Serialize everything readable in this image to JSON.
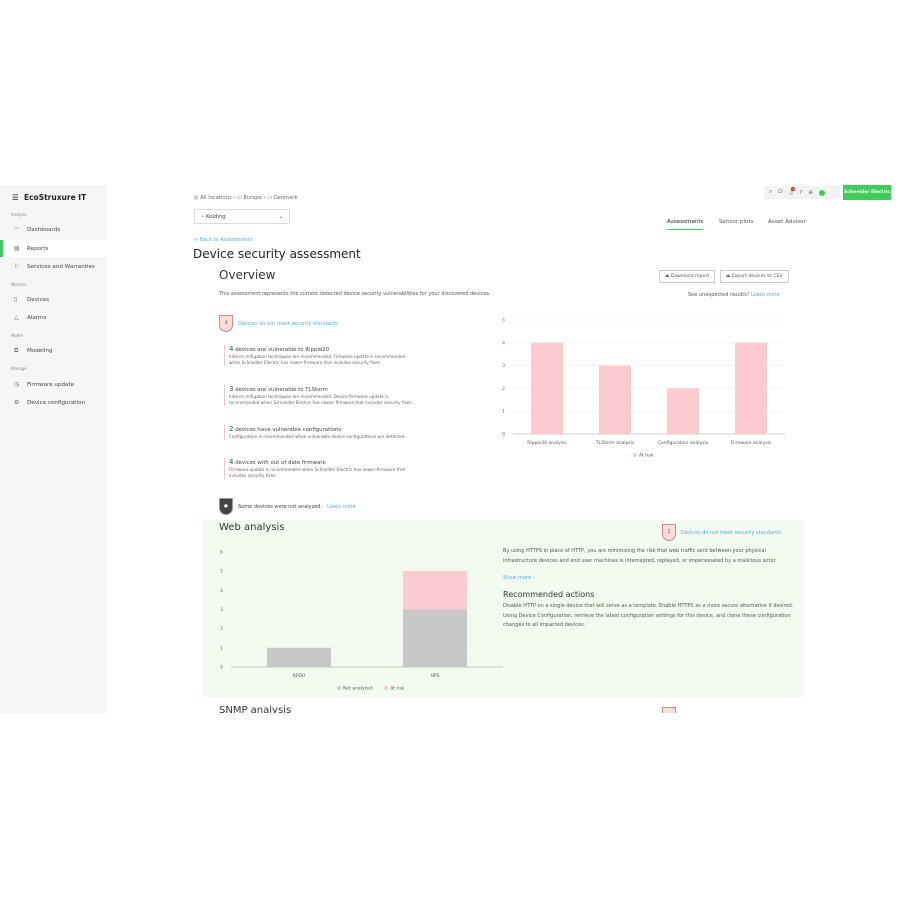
{
  "app": {
    "logo": "EcoStruxure IT",
    "brand": "Schneider Electric",
    "notification_count": "9"
  },
  "sidebar": {
    "sections": [
      {
        "label": "Analyze",
        "items": [
          {
            "label": "Dashboards",
            "icon": "dashboard-icon"
          },
          {
            "label": "Reports",
            "icon": "report-icon",
            "active": true
          },
          {
            "label": "Services and Warranties",
            "icon": "services-icon"
          }
        ]
      },
      {
        "label": "Monitor",
        "items": [
          {
            "label": "Devices",
            "icon": "device-icon"
          },
          {
            "label": "Alarms",
            "icon": "alarm-icon"
          }
        ]
      },
      {
        "label": "Model",
        "items": [
          {
            "label": "Modeling",
            "icon": "modeling-icon"
          }
        ]
      },
      {
        "label": "Manage",
        "items": [
          {
            "label": "Firmware update",
            "icon": "firmware-icon"
          },
          {
            "label": "Device configuration",
            "icon": "config-icon"
          }
        ]
      }
    ]
  },
  "breadcrumb": [
    "All locations",
    "Europe",
    "Denmark"
  ],
  "location_select": "Kolding",
  "tabs": [
    "Assessments",
    "Sensor plots",
    "Asset Advisor"
  ],
  "back_link": "< Back to Assessments",
  "page_title": "Device security assessment",
  "overview": {
    "title": "Overview",
    "download": "Download report",
    "export": "Export devices to CSV",
    "unexpected": "See unexpected results?",
    "learn_more": "Learn more",
    "intro": "This assessment represents the current detected device security vulnerabilities for your discovered devices.",
    "badge_count": "4",
    "badge_label": "Devices do not meet security standards",
    "items": [
      {
        "count": "4",
        "title": "devices are vulnerable to Ripple20",
        "desc": "Interim mitigation techniques are recommended. Firmware update is recommended when Schneider Electric has newer firmware that includes security fixes."
      },
      {
        "count": "3",
        "title": "devices are vulnerable to TLStorm",
        "desc": "Interim mitigation techniques are recommended. Device firmware update is recommended when Schneider Electric has newer firmware that includes security fixes."
      },
      {
        "count": "2",
        "title": "devices have vulnerable configurations",
        "desc": "Configuration is recommended when vulnerable device configurations are detected."
      },
      {
        "count": "4",
        "title": "devices with out of date firmware",
        "desc": "Firmware update is recommended when Schneider Electric has newer firmware that includes security fixes."
      }
    ],
    "not_analyzed": "Some devices were not analyzed.",
    "not_analyzed_link": "Learn more"
  },
  "web": {
    "title": "Web analysis",
    "badge_count": "2",
    "badge_label": "Devices do not meet security standards",
    "desc": "By using HTTPS in place of HTTP, you are minimizing the risk that web traffic sent between your physical infrastructure devices and end user machines is intercepted, replayed, or impersonated by a malicious actor.",
    "show_more": "Show more ›",
    "actions_title": "Recommended actions",
    "actions": "Disable HTTP on a single device that will serve as a template. Enable HTTPS as a more secure alternative if desired. Using Device Configuration, retrieve the latest configuration settings for this device, and clone these configuration changes to all impacted devices."
  },
  "snmp": {
    "title": "SNMP analysis"
  },
  "chart_data": [
    {
      "type": "bar",
      "categories": [
        "Ripple20 analysis",
        "TLStorm analysis",
        "Configuration analysis",
        "Firmware analysis"
      ],
      "series": [
        {
          "name": "At risk",
          "values": [
            4,
            3,
            2,
            4
          ],
          "color": "#fccbcf"
        }
      ],
      "ylim": [
        0,
        5
      ],
      "yticks": [
        0,
        1,
        2,
        3,
        4,
        5
      ],
      "grid": true,
      "legend": "bottom"
    },
    {
      "type": "bar",
      "stacked": true,
      "categories": [
        "RPDU",
        "UPS"
      ],
      "series": [
        {
          "name": "Not analyzed",
          "values": [
            1,
            3
          ],
          "color": "#c8c8c8"
        },
        {
          "name": "At risk",
          "values": [
            0,
            2
          ],
          "color": "#fccbcf"
        }
      ],
      "ylim": [
        0,
        6
      ],
      "yticks": [
        0,
        1,
        2,
        3,
        4,
        5,
        6
      ],
      "grid": true,
      "legend": "bottom"
    }
  ]
}
